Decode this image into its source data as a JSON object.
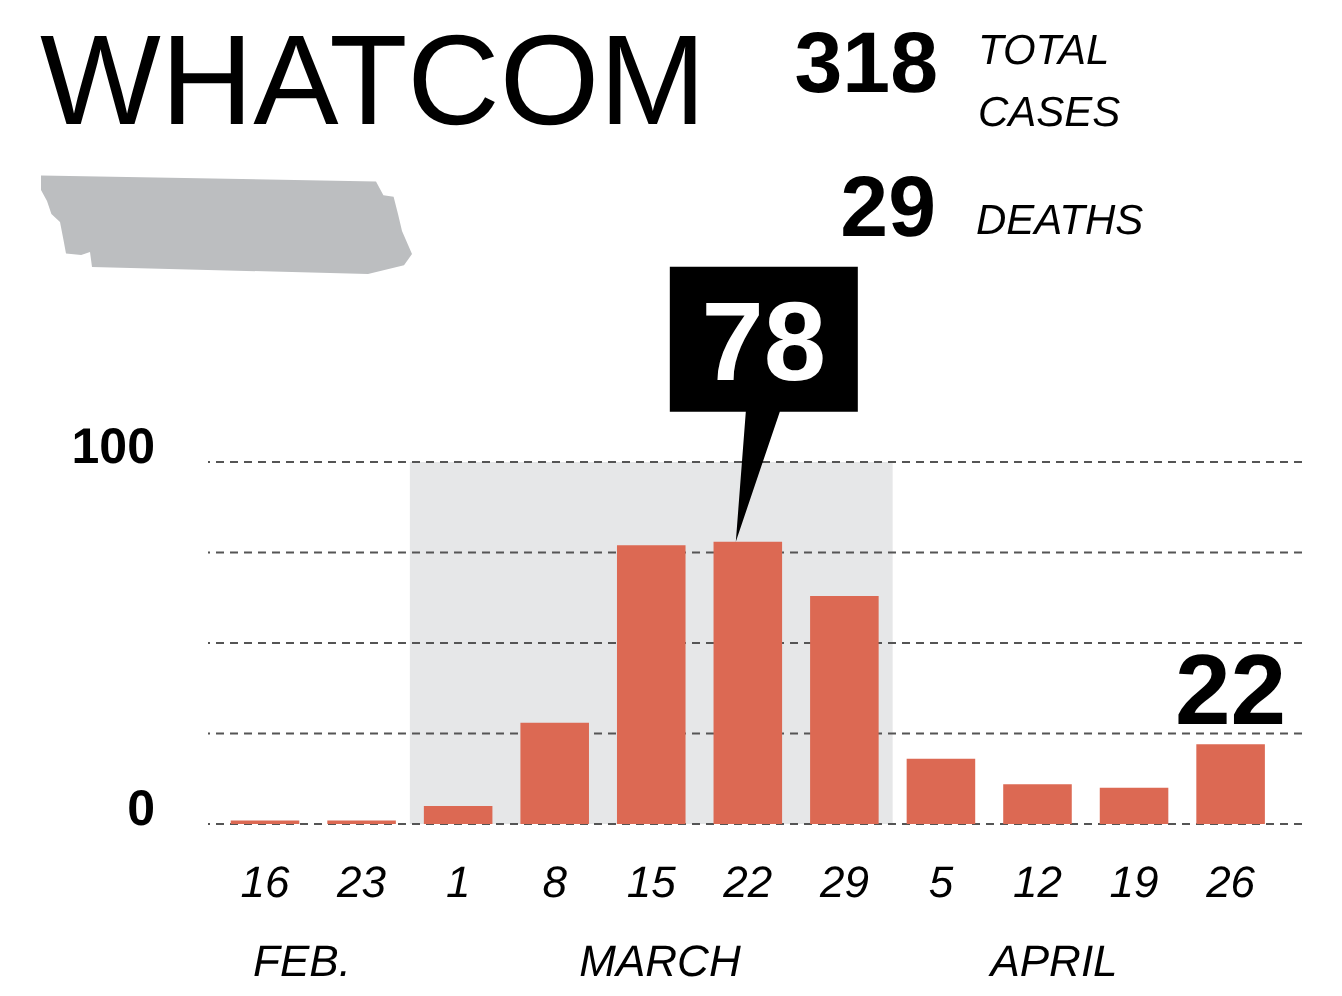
{
  "chart_data": {
    "type": "bar",
    "title": "WHATCOM",
    "annotations": [
      "318",
      "TOTAL CASES",
      "29",
      "DEATHS",
      "FEB.",
      "MARCH",
      "APRIL"
    ],
    "categories": [
      "16",
      "23",
      "1",
      "8",
      "15",
      "22",
      "29",
      "5",
      "12",
      "19",
      "26"
    ],
    "values": [
      1,
      1,
      5,
      28,
      77,
      78,
      63,
      18,
      11,
      10,
      22
    ],
    "color": "#dc6953",
    "value_labels": [
      null,
      null,
      null,
      null,
      null,
      "78",
      null,
      null,
      null,
      null,
      "22"
    ],
    "ylim": [
      0,
      100
    ],
    "yticks": [
      0,
      {
        "value": 25,
        "label": null
      },
      {
        "value": 50,
        "label": null
      },
      {
        "value": 75,
        "label": null
      },
      100
    ],
    "grid": "y",
    "bands": [
      {
        "axis": "x",
        "from": "1",
        "to": "29",
        "color": "#e6e7e8"
      }
    ]
  }
}
